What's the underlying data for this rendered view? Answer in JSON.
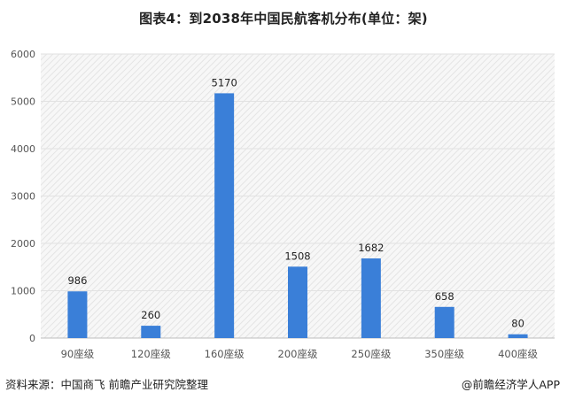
{
  "title": "图表4：到2038年中国民航客机分布(单位：架)",
  "source": "资料来源：中国商飞 前瞻产业研究院整理",
  "brand": "@前瞻经济学人APP",
  "colors": {
    "bar": "#3a7fd8",
    "grid_fill": "#f1f1f1",
    "axis": "#bdbdbd"
  },
  "chart_data": {
    "type": "bar",
    "title": "图表4：到2038年中国民航客机分布(单位：架)",
    "xlabel": "",
    "ylabel": "",
    "categories": [
      "90座级",
      "120座级",
      "160座级",
      "200座级",
      "250座级",
      "350座级",
      "400座级"
    ],
    "values": [
      986,
      260,
      5170,
      1508,
      1682,
      658,
      80
    ],
    "data_labels": [
      "986",
      "260",
      "5170",
      "1508",
      "1682",
      "658",
      "80"
    ],
    "ylim": [
      0,
      6000
    ],
    "yticks": [
      0,
      1000,
      2000,
      3000,
      4000,
      5000,
      6000
    ],
    "ytick_labels": [
      "0",
      "1000",
      "2000",
      "3000",
      "4000",
      "5000",
      "6000"
    ],
    "grid": true,
    "legend": "none"
  }
}
